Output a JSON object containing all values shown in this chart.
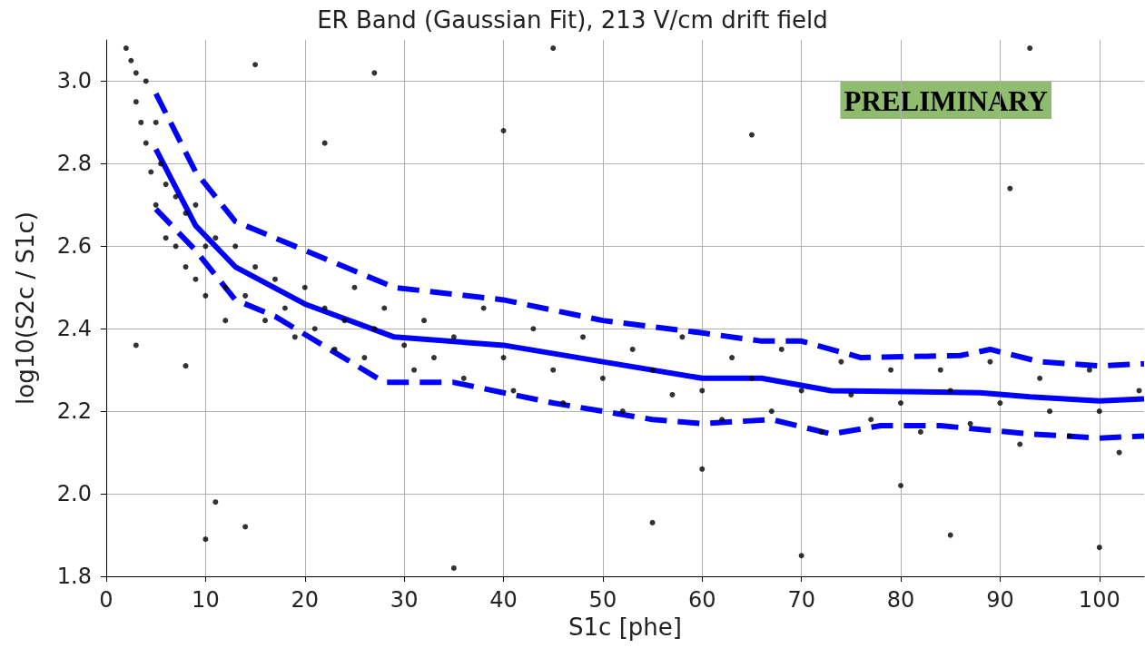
{
  "chart_data": {
    "type": "scatter",
    "title": "ER Band (Gaussian Fit), 213 V/cm drift field",
    "xlabel": "S1c [phe]",
    "ylabel": "log10(S2c / S1c)",
    "annotations": [
      "PRELIMINARY"
    ],
    "xlim": [
      0,
      104.5
    ],
    "xticks": [
      0,
      10,
      20,
      30,
      40,
      50,
      60,
      70,
      80,
      90,
      100
    ],
    "ylim": [
      1.8,
      3.1
    ],
    "yticks": [
      1.8,
      {
        "value": 2,
        "label": "2.0"
      },
      2.2,
      2.4,
      2.6,
      2.8,
      {
        "value": 3,
        "label": "3.0"
      }
    ],
    "grid": true,
    "series": [
      {
        "color": "#000000",
        "marker": "circle",
        "x": [
          2,
          2.5,
          3,
          3,
          3.5,
          4,
          4,
          4.5,
          5,
          5,
          5.5,
          6,
          6,
          7,
          7,
          8,
          8,
          9,
          9,
          10,
          10,
          11,
          12,
          12,
          13,
          14,
          15,
          16,
          17,
          18,
          19,
          20,
          21,
          22,
          23,
          24,
          25,
          26,
          27,
          28,
          30,
          31,
          32,
          33,
          35,
          36,
          38,
          40,
          41,
          43,
          45,
          46,
          48,
          50,
          52,
          53,
          55,
          57,
          58,
          60,
          62,
          63,
          65,
          67,
          68,
          70,
          72,
          74,
          75,
          77,
          79,
          80,
          82,
          84,
          85,
          87,
          89,
          90,
          92,
          94,
          95,
          97,
          99,
          100,
          102,
          104,
          3,
          8,
          10,
          11,
          14,
          22,
          15,
          27,
          45,
          40,
          65,
          91,
          93,
          55,
          70,
          85,
          100,
          35,
          60,
          80
        ],
        "values": [
          3.08,
          3.05,
          3.02,
          2.95,
          2.9,
          3.0,
          2.85,
          2.78,
          2.9,
          2.7,
          2.8,
          2.75,
          2.62,
          2.72,
          2.6,
          2.68,
          2.55,
          2.7,
          2.52,
          2.6,
          2.48,
          2.62,
          2.5,
          2.42,
          2.6,
          2.48,
          2.55,
          2.42,
          2.52,
          2.45,
          2.38,
          2.5,
          2.4,
          2.45,
          2.35,
          2.42,
          2.5,
          2.33,
          2.4,
          2.45,
          2.36,
          2.3,
          2.42,
          2.33,
          2.38,
          2.28,
          2.45,
          2.33,
          2.25,
          2.4,
          2.3,
          2.22,
          2.38,
          2.28,
          2.2,
          2.35,
          2.3,
          2.24,
          2.38,
          2.25,
          2.18,
          2.33,
          2.28,
          2.2,
          2.35,
          2.25,
          2.15,
          2.32,
          2.24,
          2.18,
          2.3,
          2.22,
          2.15,
          2.3,
          2.25,
          2.17,
          2.32,
          2.22,
          2.12,
          2.28,
          2.2,
          2.14,
          2.3,
          2.2,
          2.1,
          2.25,
          2.36,
          2.31,
          1.89,
          1.98,
          1.92,
          2.85,
          3.04,
          3.02,
          3.08,
          2.88,
          2.87,
          2.74,
          3.08,
          1.93,
          1.85,
          1.9,
          1.87,
          1.82,
          2.06,
          2.02
        ]
      },
      {
        "type": "line",
        "color": "#0000ff",
        "marker": "none",
        "line_style": "solid",
        "x": [
          5,
          9,
          13,
          20,
          29,
          40,
          50,
          60,
          66,
          73,
          88,
          93,
          100,
          104.5
        ],
        "values": [
          2.835,
          2.65,
          2.55,
          2.46,
          2.38,
          2.36,
          2.32,
          2.28,
          2.28,
          2.25,
          2.245,
          2.235,
          2.225,
          2.23
        ]
      },
      {
        "type": "line",
        "color": "#0000ff",
        "marker": "none",
        "line_style": "dashed",
        "x": [
          5,
          9,
          13,
          17,
          29,
          40,
          50,
          60,
          66,
          70,
          76,
          86,
          89,
          94,
          100,
          104.5
        ],
        "values": [
          2.97,
          2.78,
          2.66,
          2.62,
          2.5,
          2.47,
          2.42,
          2.39,
          2.37,
          2.37,
          2.33,
          2.335,
          2.35,
          2.32,
          2.31,
          2.315
        ]
      },
      {
        "type": "line",
        "color": "#0000ff",
        "marker": "none",
        "line_style": "dashed",
        "x": [
          5,
          9,
          13,
          17,
          28,
          35,
          45,
          55,
          60,
          67,
          73,
          78,
          84,
          93,
          100,
          104.5
        ],
        "values": [
          2.69,
          2.59,
          2.47,
          2.43,
          2.27,
          2.27,
          2.22,
          2.18,
          2.17,
          2.18,
          2.145,
          2.165,
          2.165,
          2.145,
          2.135,
          2.14
        ]
      }
    ]
  }
}
